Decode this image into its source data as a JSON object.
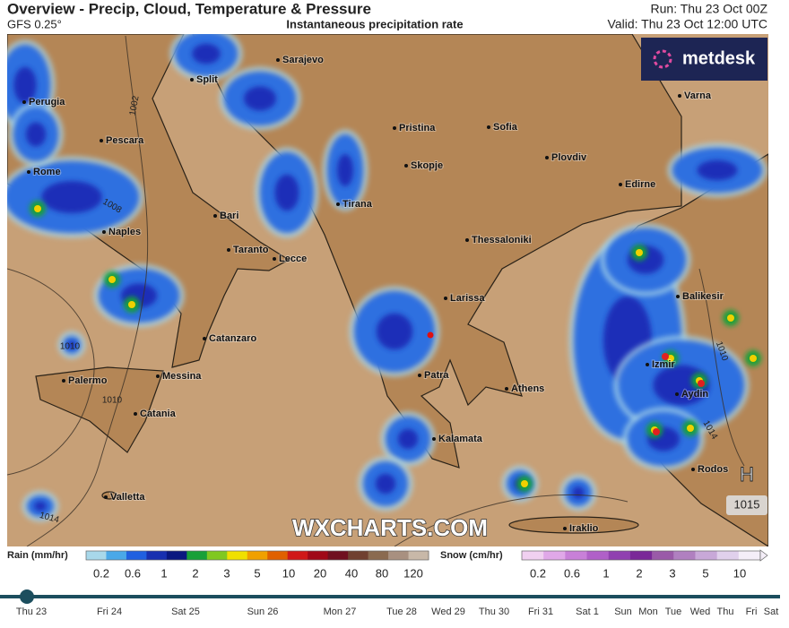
{
  "header": {
    "title": "Overview - Precip, Cloud, Temperature & Pressure",
    "model": "GFS 0.25°",
    "subtitle": "Instantaneous precipitation rate",
    "run": "Run: Thu 23 Oct 00Z",
    "valid": "Valid: Thu 23 Oct 12:00 UTC"
  },
  "logo": "metdesk",
  "watermark": "WXCHARTS.COM",
  "cities": [
    "Sarajevo",
    "Split",
    "Perugia",
    "Varna",
    "Pristina",
    "Sofia",
    "Pescara",
    "Plovdiv",
    "Skopje",
    "Rome",
    "Edirne",
    "Tirana",
    "Bari",
    "Naples",
    "Thessaloniki",
    "Taranto",
    "Lecce",
    "Balikesir",
    "Larissa",
    "Catanzaro",
    "Izmir",
    "Palermo",
    "Messina",
    "Patra",
    "Athens",
    "Aydin",
    "Catania",
    "Kalamata",
    "Rodos",
    "Valletta",
    "Iraklio"
  ],
  "isobars": [
    1002,
    1008,
    1010,
    1010,
    1014,
    1014,
    1010
  ],
  "high": {
    "label": "H",
    "pressure": 1015
  },
  "legend": {
    "rain": {
      "title": "Rain (mm/hr)",
      "ticks": [
        0.2,
        0.6,
        1,
        2,
        3,
        5,
        10,
        20,
        40,
        80,
        120
      ]
    },
    "snow": {
      "title": "Snow (cm/hr)",
      "ticks": [
        0.2,
        0.6,
        1,
        2,
        3,
        5,
        10
      ]
    }
  },
  "timeline": [
    "Thu 23",
    "Fri 24",
    "Sat 25",
    "Sun 26",
    "Mon 27",
    "Tue 28",
    "Wed 29",
    "Thu 30",
    "Fri 31",
    "Sat 1",
    "Sun",
    "Mon",
    "Tue",
    "Wed",
    "Thu",
    "Fri",
    "Sat"
  ]
}
